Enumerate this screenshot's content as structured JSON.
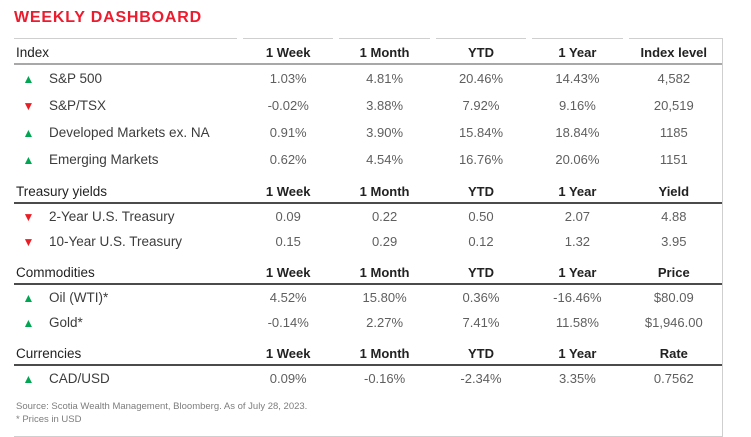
{
  "title": "WEEKLY DASHBOARD",
  "colors": {
    "title_red": "#ed1b2e",
    "up_green": "#00a651",
    "down_red": "#ec1c24",
    "rule_dark": "#4b4b4b",
    "rule_gray": "#a8a8a8",
    "rule_light": "#cfcfcf"
  },
  "table": {
    "sections": [
      {
        "header": {
          "label": "Index",
          "cols": [
            "1 Week",
            "1 Month",
            "YTD",
            "1 Year",
            "Index level"
          ]
        },
        "rows": [
          {
            "dir": "up",
            "label": "S&P 500",
            "values": [
              "1.03%",
              "4.81%",
              "20.46%",
              "14.43%",
              "4,582"
            ]
          },
          {
            "dir": "down",
            "label": "S&P/TSX",
            "values": [
              "-0.02%",
              "3.88%",
              "7.92%",
              "9.16%",
              "20,519"
            ]
          },
          {
            "dir": "up",
            "label": "Developed Markets ex. NA",
            "values": [
              "0.91%",
              "3.90%",
              "15.84%",
              "18.84%",
              "1185"
            ]
          },
          {
            "dir": "up",
            "label": "Emerging Markets",
            "values": [
              "0.62%",
              "4.54%",
              "16.76%",
              "20.06%",
              "1151"
            ]
          }
        ]
      },
      {
        "header": {
          "label": "Treasury yields",
          "cols": [
            "1 Week",
            "1 Month",
            "YTD",
            "1 Year",
            "Yield"
          ]
        },
        "rows": [
          {
            "dir": "down",
            "label": "2-Year U.S. Treasury",
            "values": [
              "0.09",
              "0.22",
              "0.50",
              "2.07",
              "4.88"
            ]
          },
          {
            "dir": "down",
            "label": "10-Year U.S. Treasury",
            "values": [
              "0.15",
              "0.29",
              "0.12",
              "1.32",
              "3.95"
            ]
          }
        ]
      },
      {
        "header": {
          "label": "Commodities",
          "cols": [
            "1 Week",
            "1 Month",
            "YTD",
            "1 Year",
            "Price"
          ]
        },
        "rows": [
          {
            "dir": "up",
            "label": "Oil (WTI)*",
            "values": [
              "4.52%",
              "15.80%",
              "0.36%",
              "-16.46%",
              "$80.09"
            ]
          },
          {
            "dir": "up",
            "label": "Gold*",
            "values": [
              "-0.14%",
              "2.27%",
              "7.41%",
              "11.58%",
              "$1,946.00"
            ]
          }
        ]
      },
      {
        "header": {
          "label": "Currencies",
          "cols": [
            "1 Week",
            "1 Month",
            "YTD",
            "1 Year",
            "Rate"
          ]
        },
        "rows": [
          {
            "dir": "up",
            "label": "CAD/USD",
            "values": [
              "0.09%",
              "-0.16%",
              "-2.34%",
              "3.35%",
              "0.7562"
            ]
          }
        ]
      }
    ]
  },
  "footer": {
    "source": "Source: Scotia Wealth Management, Bloomberg. As of July 28, 2023.",
    "note": "* Prices in USD"
  }
}
